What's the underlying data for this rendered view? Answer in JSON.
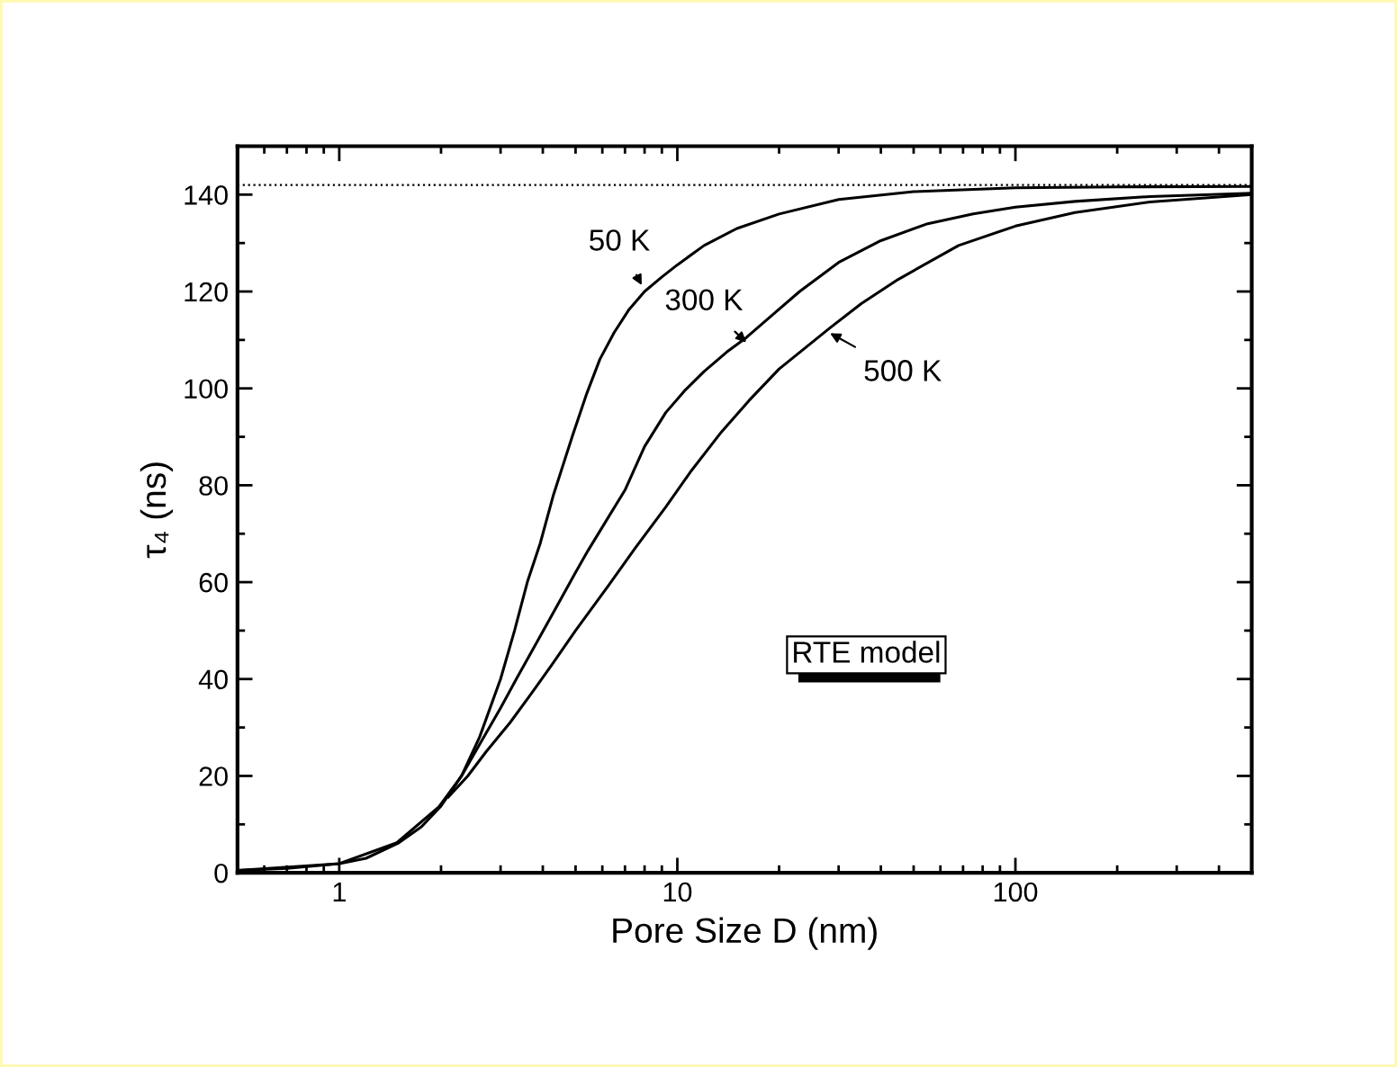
{
  "chart_data": {
    "type": "line",
    "xlabel": "Pore Size D (nm)",
    "ylabel": "τ₄ (ns)",
    "log": "x",
    "xlim": [
      0.5,
      500
    ],
    "xticks": [
      1,
      10,
      100
    ],
    "ylim": [
      0,
      150
    ],
    "yticks": [
      0,
      20,
      40,
      60,
      80,
      100,
      120,
      140
    ],
    "grid": false,
    "marker": "none",
    "line_style": "solid",
    "series": [
      {
        "color": "#000000",
        "x": [
          0.5,
          0.7,
          1,
          1.2,
          1.5,
          1.75,
          2,
          2.3,
          2.6,
          3,
          3.3,
          3.6,
          3.93,
          4.3,
          4.9,
          5.4,
          5.9,
          6.5,
          7.2,
          8,
          9,
          10,
          12,
          15,
          20,
          30,
          50,
          100,
          200,
          500
        ],
        "values": [
          0.5,
          0.9,
          1.9,
          3,
          6.2,
          9.5,
          13.8,
          20,
          28,
          40,
          50,
          60,
          68,
          78,
          90.3,
          99,
          106,
          111.5,
          116.3,
          120,
          123,
          125.5,
          129.5,
          133,
          136,
          139,
          140.6,
          141.4,
          141.6,
          141.7
        ]
      },
      {
        "color": "#000000",
        "x": [
          0.5,
          1,
          1.48,
          1.97,
          2.3,
          2.6,
          3,
          3.34,
          3.8,
          4.4,
          5,
          5.44,
          6.2,
          7,
          8,
          9.24,
          10.5,
          12,
          14,
          16,
          19,
          23,
          30,
          40,
          55,
          75,
          100,
          150,
          250,
          500
        ],
        "values": [
          0.5,
          1.9,
          6.2,
          13.6,
          20,
          26.5,
          34,
          40,
          47,
          55,
          62,
          66.5,
          73,
          79,
          88,
          95,
          99.5,
          103.5,
          107.5,
          110.5,
          115,
          120,
          126,
          130.5,
          134,
          136,
          137.4,
          138.6,
          139.6,
          140.3
        ]
      },
      {
        "color": "#000000",
        "x": [
          2.1,
          2.4,
          2.72,
          3.2,
          3.7,
          4.26,
          5,
          6.27,
          7.5,
          9.24,
          11,
          13.5,
          16.3,
          20,
          28.3,
          35,
          45,
          67.9,
          100,
          150,
          250,
          500
        ],
        "values": [
          15.6,
          20,
          25,
          31,
          37,
          43,
          50,
          59.4,
          67,
          75.5,
          83,
          91,
          97.5,
          104,
          112.5,
          117.5,
          122.5,
          129.5,
          133.5,
          136.3,
          138.5,
          140
        ]
      }
    ],
    "ref_lines": [
      {
        "axis": "y",
        "value": 142,
        "line_style": "dotted",
        "color": "#000000"
      }
    ],
    "annotations": [
      {
        "text": "50 K",
        "x": 7.85,
        "y": 121.3
      },
      {
        "text": "300 K",
        "x": 16,
        "y": 109.5
      },
      {
        "text": "500 K",
        "x": 28.3,
        "y": 111.4
      },
      "RTE model"
    ]
  }
}
